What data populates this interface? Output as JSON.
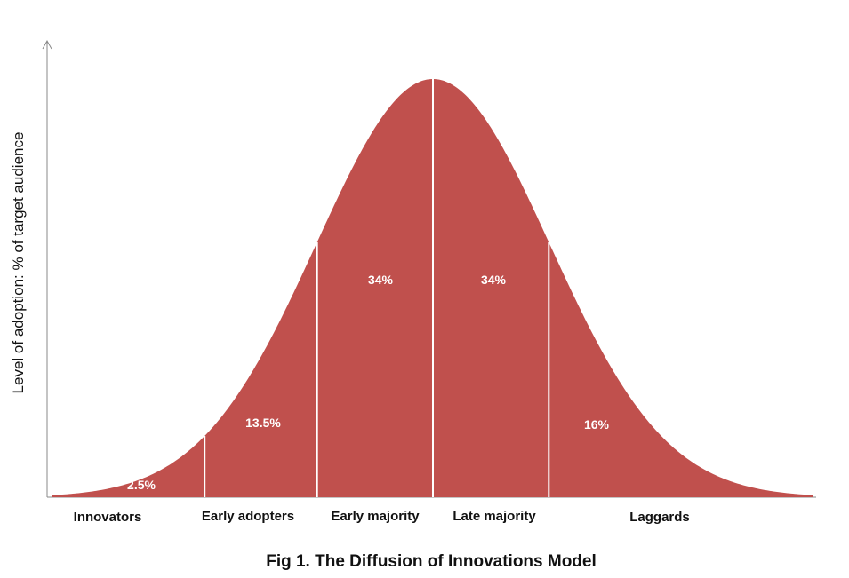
{
  "chart_data": {
    "type": "area",
    "title": "Fig 1. The Diffusion of Innovations Model",
    "xlabel": "",
    "ylabel": "Level of adoption: % of target audience",
    "grid": false,
    "legend": "none",
    "color": "#c0504d",
    "divider_color": "#ffffff",
    "axis_color": "#888888",
    "distribution": "normal",
    "segments": [
      {
        "name": "Innovators",
        "value_label": "2.5%",
        "percent": 2.5
      },
      {
        "name": "Early adopters",
        "value_label": "13.5%",
        "percent": 13.5
      },
      {
        "name": "Early majority",
        "value_label": "34%",
        "percent": 34
      },
      {
        "name": "Late majority",
        "value_label": "34%",
        "percent": 34
      },
      {
        "name": "Laggards",
        "value_label": "16%",
        "percent": 16
      }
    ]
  }
}
